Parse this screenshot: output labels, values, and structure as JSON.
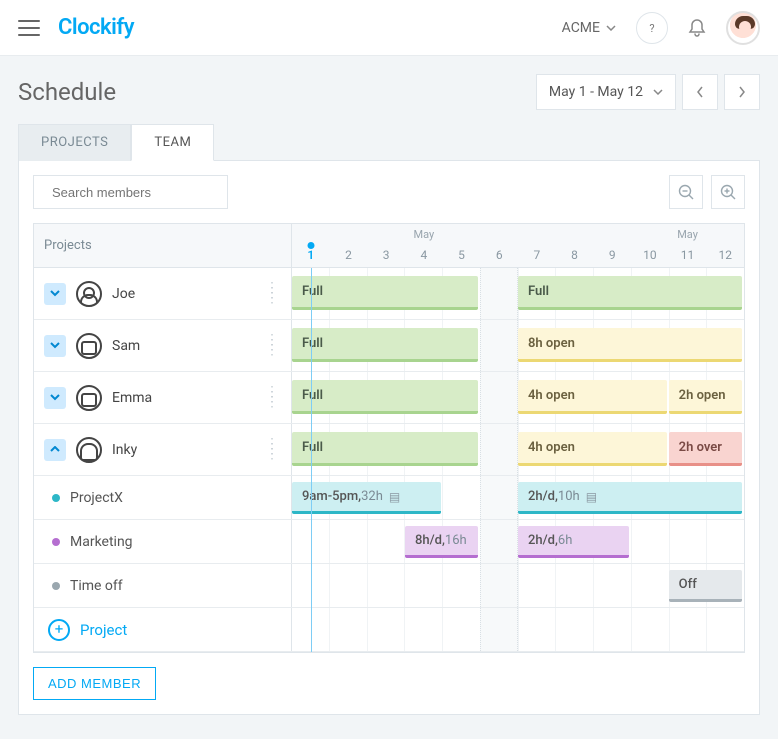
{
  "header": {
    "logo_text": "Clockify",
    "workspace": "ACME"
  },
  "page": {
    "title": "Schedule",
    "date_range": "May 1 - May 12"
  },
  "tabs": {
    "projects": "PROJECTS",
    "team": "TEAM"
  },
  "search": {
    "placeholder": "Search members"
  },
  "grid": {
    "left_header": "Projects",
    "month_label": "May",
    "days": [
      "1",
      "2",
      "3",
      "4",
      "5",
      "6",
      "7",
      "8",
      "9",
      "10",
      "11",
      "12"
    ],
    "today_index": 0,
    "weekend_index": 5
  },
  "rows": [
    {
      "type": "user",
      "name": "Joe",
      "icon": "person",
      "expanded": false,
      "bars": [
        {
          "style": "full",
          "label": "Full",
          "start": 0,
          "span": 5
        },
        {
          "style": "full",
          "label": "Full",
          "start": 6,
          "span": 6
        }
      ]
    },
    {
      "type": "user",
      "name": "Sam",
      "icon": "robot",
      "expanded": false,
      "bars": [
        {
          "style": "full",
          "label": "Full",
          "start": 0,
          "span": 5
        },
        {
          "style": "open",
          "label": "8h open",
          "start": 6,
          "span": 6
        }
      ]
    },
    {
      "type": "user",
      "name": "Emma",
      "icon": "target",
      "expanded": false,
      "bars": [
        {
          "style": "full",
          "label": "Full",
          "start": 0,
          "span": 5
        },
        {
          "style": "open",
          "label": "4h open",
          "start": 6,
          "span": 4
        },
        {
          "style": "open",
          "label": "2h open",
          "start": 10,
          "span": 2
        }
      ]
    },
    {
      "type": "user",
      "name": "Inky",
      "icon": "ghost",
      "expanded": true,
      "bars": [
        {
          "style": "full",
          "label": "Full",
          "start": 0,
          "span": 5
        },
        {
          "style": "open",
          "label": "4h open",
          "start": 6,
          "span": 4
        },
        {
          "style": "over",
          "label": "2h over",
          "start": 10,
          "span": 2
        }
      ]
    },
    {
      "type": "project",
      "name": "ProjectX",
      "dot_color": "#2db7c7",
      "bars": [
        {
          "style": "teal",
          "label": "9am-5pm,",
          "light": " 32h",
          "note": true,
          "start": 0,
          "span": 4
        },
        {
          "style": "teal",
          "label": "2h/d,",
          "light": " 10h",
          "note": true,
          "start": 6,
          "span": 6
        }
      ]
    },
    {
      "type": "project",
      "name": "Marketing",
      "dot_color": "#b56ed0",
      "bars": [
        {
          "style": "purple",
          "label": "8h/d,",
          "light": " 16h",
          "start": 3,
          "span": 2
        },
        {
          "style": "purple",
          "label": "2h/d,",
          "light": " 6h",
          "start": 6,
          "span": 3
        }
      ]
    },
    {
      "type": "project",
      "name": "Time off",
      "dot_color": "#9aa7af",
      "bars": [
        {
          "style": "grey",
          "label": "Off",
          "start": 10,
          "span": 2
        }
      ]
    }
  ],
  "add_project": "Project",
  "add_member": "ADD MEMBER",
  "colors": {
    "primary": "#03a9f4",
    "full_bg": "#d7ecc7",
    "full_border": "#a8d48f",
    "open_bg": "#fdf6d8",
    "open_border": "#ecd873",
    "over_bg": "#f9d4d0",
    "over_border": "#e89088",
    "teal_bg": "#cdeff2",
    "teal_border": "#2db7c7",
    "purple_bg": "#ead3f2",
    "purple_border": "#b56ed0",
    "grey_bg": "#e5e9ec",
    "grey_border": "#a8b2b9"
  }
}
